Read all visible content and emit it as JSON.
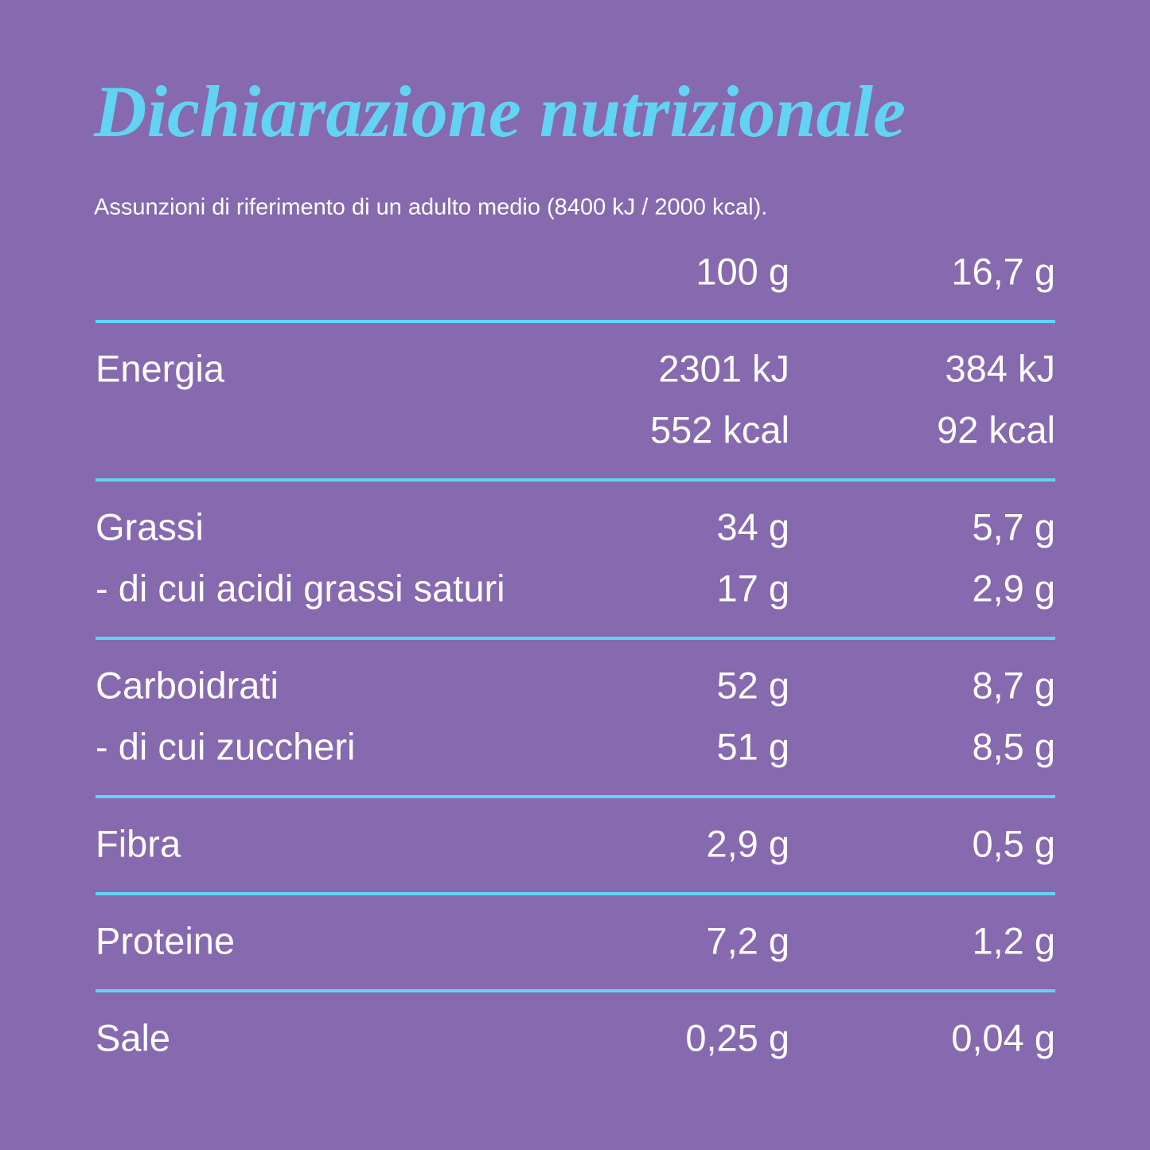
{
  "header": {
    "title": "Dichiarazione nutrizionale",
    "subtitle": "Assunzioni di riferimento di un adulto medio (8400 kJ / 2000 kcal)."
  },
  "table": {
    "columns": [
      "100 g",
      "16,7 g"
    ],
    "groups": [
      [
        [
          "Energia",
          "2301 kJ",
          "384 kJ"
        ],
        [
          null,
          "552 kcal",
          "92 kcal"
        ]
      ],
      [
        [
          "Grassi",
          "34 g",
          "5,7 g"
        ],
        [
          "- di cui acidi grassi saturi",
          "17 g",
          "2,9 g"
        ]
      ],
      [
        [
          "Carboidrati",
          "52 g",
          "8,7 g"
        ],
        [
          "- di cui zuccheri",
          "51 g",
          "8,5 g"
        ]
      ],
      [
        [
          "Fibra",
          "2,9 g",
          "0,5 g"
        ]
      ],
      [
        [
          "Proteine",
          "7,2 g",
          "1,2 g"
        ]
      ],
      [
        [
          "Sale",
          "0,25 g",
          "0,04 g"
        ]
      ]
    ]
  }
}
